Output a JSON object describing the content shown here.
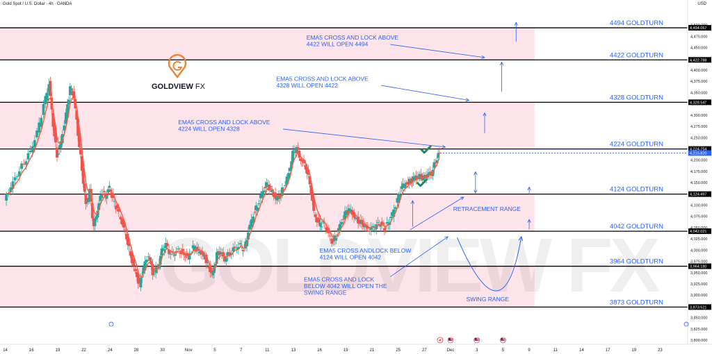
{
  "header": {
    "symbol_title": "Gold Spot / U.S. Dollar · 4h · OANDA",
    "currency": "USD"
  },
  "brand": {
    "name": "GOLDVIEW FX",
    "name_part1": "GOLDVIEW",
    "name_part2": "FX",
    "accent_color": "#e8863a"
  },
  "colors": {
    "band_pink": "#fce4ea",
    "level_line": "#000000",
    "annotation_blue": "#2962ff",
    "candle_up": "#26a69a",
    "candle_down": "#ef5350",
    "ema": "#ff5a3a",
    "check_green": "#1b8a6b"
  },
  "chart_data": {
    "type": "candlestick",
    "ylim": [
      3800,
      4525
    ],
    "y_ticks": [
      "4,500.000",
      "4,475.000",
      "4,450.000",
      "4,425.000",
      "4,400.000",
      "4,375.000",
      "4,350.000",
      "4,325.000",
      "4,300.000",
      "4,275.000",
      "4,250.000",
      "4,225.000",
      "4,200.000",
      "4,175.000",
      "4,150.000",
      "4,125.000",
      "4,100.000",
      "4,075.000",
      "4,050.000",
      "4,025.000",
      "4,000.000",
      "3,975.000",
      "3,950.000",
      "3,925.000",
      "3,900.000",
      "3,875.000",
      "3,850.000",
      "3,825.000",
      "3,800.000"
    ],
    "x_ticks": [
      {
        "label": "14",
        "x": 0
      },
      {
        "label": "16",
        "x": 2
      },
      {
        "label": "19",
        "x": 4
      },
      {
        "label": "22",
        "x": 6
      },
      {
        "label": "24",
        "x": 8
      },
      {
        "label": "28",
        "x": 10
      },
      {
        "label": "30",
        "x": 12
      },
      {
        "label": "Nov",
        "x": 14
      },
      {
        "label": "5",
        "x": 16
      },
      {
        "label": "7",
        "x": 18
      },
      {
        "label": "11",
        "x": 20
      },
      {
        "label": "13",
        "x": 22
      },
      {
        "label": "16",
        "x": 24
      },
      {
        "label": "19",
        "x": 26
      },
      {
        "label": "21",
        "x": 28
      },
      {
        "label": "25",
        "x": 30
      },
      {
        "label": "27",
        "x": 32
      },
      {
        "label": "Dec",
        "x": 34
      },
      {
        "label": "3",
        "x": 36
      },
      {
        "label": "5",
        "x": 38
      },
      {
        "label": "9",
        "x": 40
      },
      {
        "label": "11",
        "x": 42
      },
      {
        "label": "14",
        "x": 44
      },
      {
        "label": "17",
        "x": 46
      },
      {
        "label": "19",
        "x": 48
      },
      {
        "label": "23",
        "x": 50
      }
    ],
    "x_range": [
      -0.4,
      52.1
    ],
    "last_bar_x": 33.2,
    "levels": [
      {
        "price": 4494.067,
        "label": "4494 GOLDTURN",
        "price_tag": "4,494.067"
      },
      {
        "price": 4422.788,
        "label": "4422 GOLDTURN",
        "price_tag": "4,422.788"
      },
      {
        "price": 4328.547,
        "label": "4328 GOLDTURN",
        "price_tag": "4,328.547"
      },
      {
        "price": 4224.754,
        "label": "4224 GOLDTURN",
        "price_tag": "4,224.754"
      },
      {
        "price": 4124.497,
        "label": "4124 GOLDTURN",
        "price_tag": "4,124.497"
      },
      {
        "price": 4042.021,
        "label": "4042 GOLDTURN",
        "price_tag": "4,042.021"
      },
      {
        "price": 3964.18,
        "label": "3964 GOLDTURN",
        "price_tag": "3,964.180"
      },
      {
        "price": 3873.521,
        "label": "3873 GOLDTURN",
        "price_tag": "3,873.521"
      }
    ],
    "current_price": {
      "price": 4215.82,
      "tag": "4,215.820"
    },
    "bands": [
      [
        4422.788,
        4494.067
      ],
      [
        4224.754,
        4328.547
      ],
      [
        4042.021,
        4124.497
      ],
      [
        3873.521,
        3964.18
      ]
    ],
    "annotations": [
      {
        "lines": [
          "EMA5 CROSS AND LOCK ABOVE",
          "4422 WILL OPEN 4494"
        ],
        "x": 23.0,
        "price": 4468
      },
      {
        "lines": [
          "EMA5 CROSS AND LOCK ABOVE",
          "4328 WILL OPEN 4422"
        ],
        "x": 20.7,
        "price": 4376
      },
      {
        "lines": [
          "EMA5 CROSS AND LOCK ABOVE",
          "4224 WILL OPEN 4328"
        ],
        "x": 13.2,
        "price": 4280
      },
      {
        "lines": [
          "RETRACEMENT RANGE"
        ],
        "x": 34.2,
        "price": 4087
      },
      {
        "lines": [
          "EMA5 CROSS ANDLOCK BELOW",
          "4124 WILL OPEN 4042"
        ],
        "x": 24.0,
        "price": 3994
      },
      {
        "lines": [
          "EMA5 CROSS AND LOCK",
          "BELOW 4042 WILL OPEN THE",
          "SWING RANGE"
        ],
        "x": 22.8,
        "price": 3930
      },
      {
        "lines": [
          "SWING RANGE"
        ],
        "x": 35.2,
        "price": 3886
      }
    ],
    "arrows": [
      {
        "from": [
          21.2,
          4269
        ],
        "to": [
          33.6,
          4229
        ]
      },
      {
        "from": [
          28.7,
          4366
        ],
        "to": [
          35.4,
          4333
        ]
      },
      {
        "from": [
          29.4,
          4457
        ],
        "to": [
          36.6,
          4428
        ]
      },
      {
        "from": [
          30.9,
          4045
        ],
        "to": [
          35.0,
          4118
        ]
      },
      {
        "from": [
          29.4,
          3941
        ],
        "to": [
          33.8,
          4030
        ]
      },
      {
        "from": [
          36.6,
          4260
        ],
        "to": [
          36.6,
          4305
        ]
      },
      {
        "from": [
          37.9,
          4352
        ],
        "to": [
          37.9,
          4418
        ]
      },
      {
        "from": [
          39.0,
          4463
        ],
        "to": [
          39.0,
          4506
        ]
      },
      {
        "from": [
          31.1,
          4052
        ],
        "to": [
          31.1,
          4110
        ]
      },
      {
        "from": [
          35.9,
          4127
        ],
        "to": [
          35.9,
          4174
        ],
        "both": true
      },
      {
        "from": [
          40.0,
          4124
        ],
        "to": [
          40.0,
          4140
        ]
      },
      {
        "from": [
          40.0,
          4046
        ],
        "to": [
          40.0,
          4068
        ]
      }
    ],
    "swing_curve": {
      "start": [
        34.5,
        4028
      ],
      "control": [
        38.0,
        3790
      ],
      "end": [
        39.4,
        4030
      ]
    },
    "checkmarks": [
      {
        "x": 32.1,
        "price": 4223
      },
      {
        "x": 31.8,
        "price": 4149
      }
    ],
    "events": [
      {
        "icon": "lightning-icon",
        "x": 33.2
      },
      {
        "icon": "us-flag-icon",
        "x": 34.0
      },
      {
        "icon": "us-flag-icon",
        "x": 36.0
      },
      {
        "icon": "us-flag-icon",
        "x": 38.0
      }
    ],
    "price_path": [
      [
        0,
        4110
      ],
      [
        0.5,
        4140
      ],
      [
        1,
        4170
      ],
      [
        1.5,
        4195
      ],
      [
        2,
        4220
      ],
      [
        2.5,
        4260
      ],
      [
        3,
        4320
      ],
      [
        3.4,
        4370
      ],
      [
        3.7,
        4280
      ],
      [
        4,
        4210
      ],
      [
        4.3,
        4240
      ],
      [
        4.7,
        4300
      ],
      [
        5,
        4360
      ],
      [
        5.3,
        4340
      ],
      [
        5.6,
        4260
      ],
      [
        5.9,
        4180
      ],
      [
        6.2,
        4100
      ],
      [
        6.5,
        4130
      ],
      [
        6.8,
        4050
      ],
      [
        7.1,
        4090
      ],
      [
        7.4,
        4130
      ],
      [
        7.7,
        4120
      ],
      [
        8,
        4140
      ],
      [
        8.3,
        4110
      ],
      [
        8.6,
        4090
      ],
      [
        9,
        4060
      ],
      [
        9.3,
        4030
      ],
      [
        9.6,
        3990
      ],
      [
        10,
        3950
      ],
      [
        10.3,
        3920
      ],
      [
        10.6,
        3960
      ],
      [
        11,
        3990
      ],
      [
        11.3,
        3950
      ],
      [
        11.7,
        3960
      ],
      [
        12,
        4000
      ],
      [
        12.3,
        4010
      ],
      [
        12.7,
        3990
      ],
      [
        13,
        3995
      ],
      [
        13.4,
        4000
      ],
      [
        13.7,
        3990
      ],
      [
        14,
        3985
      ],
      [
        14.4,
        4005
      ],
      [
        14.7,
        4000
      ],
      [
        15,
        3995
      ],
      [
        15.3,
        3985
      ],
      [
        15.6,
        3960
      ],
      [
        15.9,
        3945
      ],
      [
        16.2,
        3990
      ],
      [
        16.5,
        3995
      ],
      [
        16.8,
        3980
      ],
      [
        17.2,
        3995
      ],
      [
        17.6,
        4005
      ],
      [
        18,
        4010
      ],
      [
        18.3,
        4000
      ],
      [
        18.6,
        4040
      ],
      [
        19,
        4080
      ],
      [
        19.3,
        4100
      ],
      [
        19.7,
        4130
      ],
      [
        20,
        4145
      ],
      [
        20.3,
        4135
      ],
      [
        20.7,
        4115
      ],
      [
        21,
        4120
      ],
      [
        21.3,
        4140
      ],
      [
        21.7,
        4170
      ],
      [
        22,
        4215
      ],
      [
        22.3,
        4225
      ],
      [
        22.6,
        4200
      ],
      [
        23,
        4185
      ],
      [
        23.3,
        4150
      ],
      [
        23.6,
        4085
      ],
      [
        24,
        4055
      ],
      [
        24.3,
        4060
      ],
      [
        24.6,
        4045
      ],
      [
        25,
        4020
      ],
      [
        25.3,
        4030
      ],
      [
        25.6,
        4055
      ],
      [
        26,
        4080
      ],
      [
        26.3,
        4090
      ],
      [
        26.7,
        4075
      ],
      [
        27,
        4065
      ],
      [
        27.3,
        4060
      ],
      [
        27.6,
        4050
      ],
      [
        28,
        4045
      ],
      [
        28.4,
        4055
      ],
      [
        28.7,
        4060
      ],
      [
        29,
        4050
      ],
      [
        29.3,
        4060
      ],
      [
        29.6,
        4080
      ],
      [
        30,
        4110
      ],
      [
        30.3,
        4140
      ],
      [
        30.7,
        4150
      ],
      [
        31,
        4155
      ],
      [
        31.3,
        4160
      ],
      [
        31.7,
        4165
      ],
      [
        32,
        4158
      ],
      [
        32.3,
        4168
      ],
      [
        32.6,
        4170
      ],
      [
        32.9,
        4200
      ],
      [
        33.2,
        4216
      ]
    ]
  }
}
